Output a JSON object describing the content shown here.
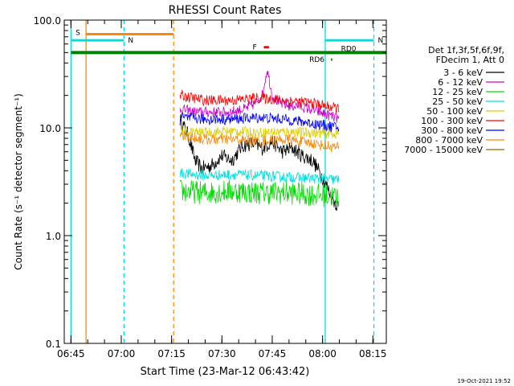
{
  "chart_data": {
    "type": "line",
    "title": "RHESSI Count Rates",
    "xlabel": "Start Time (23-Mar-12 06:43:42)",
    "ylabel": "Count Rate (s⁻¹ detector segment⁻¹)",
    "yscale": "log",
    "ylim": [
      0.1,
      100
    ],
    "xlim_minutes": [
      -2,
      94
    ],
    "x_unit": "minutes after 06:45",
    "x_ticks": [
      {
        "label": "06:45",
        "value": 0
      },
      {
        "label": "07:00",
        "value": 15
      },
      {
        "label": "07:15",
        "value": 30
      },
      {
        "label": "07:30",
        "value": 45
      },
      {
        "label": "07:45",
        "value": 60
      },
      {
        "label": "08:00",
        "value": 75
      },
      {
        "label": "08:15",
        "value": 90
      }
    ],
    "y_ticks": [
      {
        "label": "0.1",
        "value": 0.1
      },
      {
        "label": "1.0",
        "value": 1
      },
      {
        "label": "10.0",
        "value": 10
      },
      {
        "label": "100.0",
        "value": 100
      }
    ],
    "legend_header": [
      "Det 1f,3f,5f,6f,9f,",
      "FDecim 1, Att 0"
    ],
    "series": [
      {
        "name": "3 - 6 keV",
        "color": "#000000",
        "x": [
          32.5,
          35,
          37,
          39,
          42,
          45,
          48,
          51,
          54,
          57,
          60,
          63,
          66,
          69,
          72,
          75,
          78,
          80
        ],
        "values": [
          12,
          8.5,
          5.0,
          4.2,
          4.5,
          5.5,
          5.0,
          6.8,
          7.2,
          6.5,
          7.5,
          6.0,
          6.5,
          5.5,
          5.0,
          3.5,
          2.2,
          1.8
        ]
      },
      {
        "name": "6 - 12 keV",
        "color": "#cc00cc",
        "x": [
          32.5,
          37,
          42,
          47,
          52,
          55,
          57,
          58.5,
          60,
          62,
          65,
          68,
          71,
          74,
          77,
          80
        ],
        "values": [
          15,
          14,
          14,
          14,
          15,
          17,
          20,
          35,
          20,
          17,
          16,
          16,
          15,
          14,
          13,
          12
        ]
      },
      {
        "name": "12 - 25 keV",
        "color": "#00dd00",
        "x": [
          32.5,
          40,
          48,
          56,
          64,
          72,
          80
        ],
        "values": [
          2.6,
          2.5,
          2.6,
          2.5,
          2.5,
          2.4,
          2.3
        ]
      },
      {
        "name": "25 - 50 keV",
        "color": "#00e0e0",
        "x": [
          32.5,
          40,
          48,
          56,
          64,
          72,
          80
        ],
        "values": [
          3.8,
          3.6,
          3.7,
          3.6,
          3.5,
          3.4,
          3.3
        ]
      },
      {
        "name": "50 - 100 keV",
        "color": "#ddcc00",
        "x": [
          32.5,
          40,
          48,
          56,
          64,
          72,
          80
        ],
        "values": [
          9.2,
          9.0,
          9.3,
          9.0,
          9.2,
          9.0,
          8.8
        ]
      },
      {
        "name": "100 - 300 keV",
        "color": "#ff0000",
        "x": [
          32.5,
          40,
          48,
          56,
          64,
          72,
          80
        ],
        "values": [
          20,
          18,
          18,
          19,
          18,
          17,
          15
        ]
      },
      {
        "name": "300 - 800 keV",
        "color": "#0000ff",
        "x": [
          32.5,
          40,
          48,
          56,
          64,
          72,
          80
        ],
        "values": [
          12.5,
          12,
          12,
          12.5,
          12,
          11,
          10
        ]
      },
      {
        "name": "800 - 7000 keV",
        "color": "#ff8800",
        "x": [
          32.5,
          40,
          48,
          56,
          64,
          72,
          80
        ],
        "values": [
          8.5,
          7.8,
          7.8,
          7.5,
          7.8,
          7.2,
          6.5
        ]
      },
      {
        "name": "7000 - 15000 keV",
        "color": "#996600",
        "x": [],
        "values": []
      }
    ],
    "vertical_lines": [
      {
        "x": 4.5,
        "color": "#ff8800",
        "style": "solid"
      },
      {
        "x": 0,
        "color": "#00e0e0",
        "style": "solid"
      },
      {
        "x": 15.8,
        "color": "#00e0e0",
        "style": "dashed"
      },
      {
        "x": 30.6,
        "color": "#ff8800",
        "style": "dashed"
      },
      {
        "x": 75.8,
        "color": "#00e0e0",
        "style": "solid"
      },
      {
        "x": 90.3,
        "color": "#00e0e0",
        "style": "dashed"
      }
    ],
    "flag_bars": [
      {
        "label": "S",
        "color": "#ff8800",
        "x_start": 4.5,
        "x_end": 30.6,
        "y": 74
      },
      {
        "label": "N",
        "color": "#00e0e0",
        "x_start": 0,
        "x_end": 15.8,
        "y": 65
      },
      {
        "label": "N",
        "color": "#00e0e0",
        "x_start": 75.8,
        "x_end": 90.3,
        "y": 65
      },
      {
        "label": "RD0",
        "color": "#008000",
        "x_start": 0,
        "x_end": 94,
        "y": 50
      },
      {
        "label": "F",
        "color": "#ff0000",
        "x_start": 57.5,
        "x_end": 59.0,
        "y": 56
      },
      {
        "label": "RD6",
        "color": "#008000",
        "x_start": 77.5,
        "x_end": 77.9,
        "y": 43
      }
    ],
    "footer_date": "19-Oct-2021 19:52"
  }
}
